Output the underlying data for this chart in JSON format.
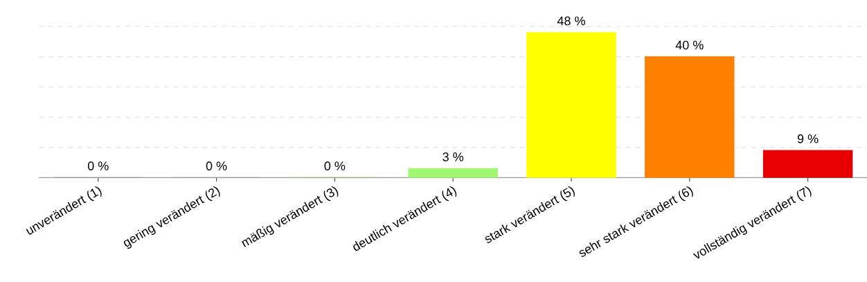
{
  "chart_data": {
    "type": "bar",
    "categories": [
      "unverändert (1)",
      "gering verändert (2)",
      "mäßig verändert (3)",
      "deutlich verändert (4)",
      "stark verändert (5)",
      "sehr stark verändert (6)",
      "vollständig verändert (7)"
    ],
    "values": [
      0,
      0,
      0,
      3,
      48,
      40,
      9
    ],
    "colors": [
      "#7f93b8",
      "#8fa0c8",
      "#8fc86a",
      "#a0f870",
      "#ffff00",
      "#ff8000",
      "#e60000"
    ],
    "value_labels": [
      "0 %",
      "0 %",
      "0 %",
      "3 %",
      "48 %",
      "40 %",
      "9 %"
    ],
    "yticks": [
      {
        "value": 10,
        "label": null
      },
      {
        "value": 20,
        "label": null
      },
      {
        "value": 30,
        "label": null
      },
      {
        "value": 40,
        "label": null
      },
      {
        "value": 50,
        "label": null
      }
    ],
    "grid": "y",
    "tick_labels": "x"
  }
}
